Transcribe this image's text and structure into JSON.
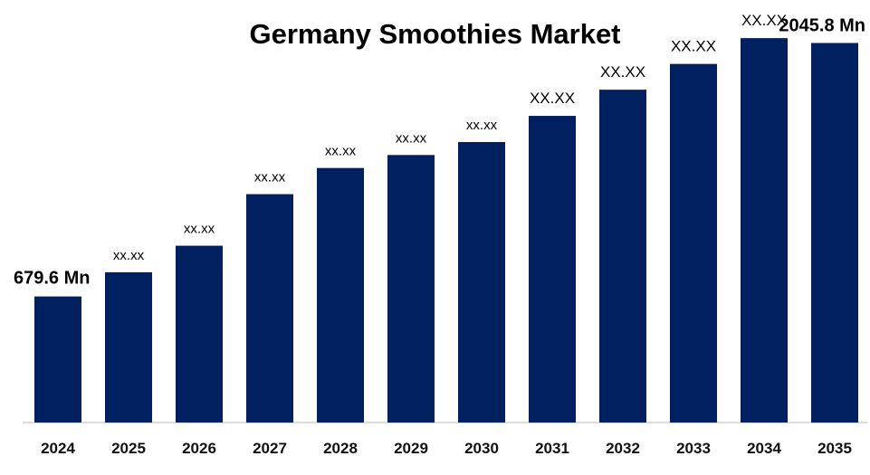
{
  "chart_data": {
    "type": "bar",
    "title": "Germany Smoothies Market",
    "xlabel": "",
    "ylabel": "",
    "categories": [
      "2024",
      "2025",
      "2026",
      "2027",
      "2028",
      "2029",
      "2030",
      "2031",
      "2032",
      "2033",
      "2034",
      "2035"
    ],
    "values": [
      679.6,
      810,
      953,
      1231,
      1372,
      1442,
      1512,
      1653,
      1794,
      1933,
      2072,
      2045.8
    ],
    "data_labels": [
      "679.6 Mn",
      "xx.xx",
      "xx.xx",
      "xx.xx",
      "xx.xx",
      "xx.xx",
      "xx.xx",
      "XX.XX",
      "XX.XX",
      "XX.XX",
      "XX.XX",
      "2045.8 Mn"
    ],
    "ylim": [
      0,
      2180
    ],
    "grid": false,
    "legend": "none",
    "bar_color": "#002060"
  }
}
